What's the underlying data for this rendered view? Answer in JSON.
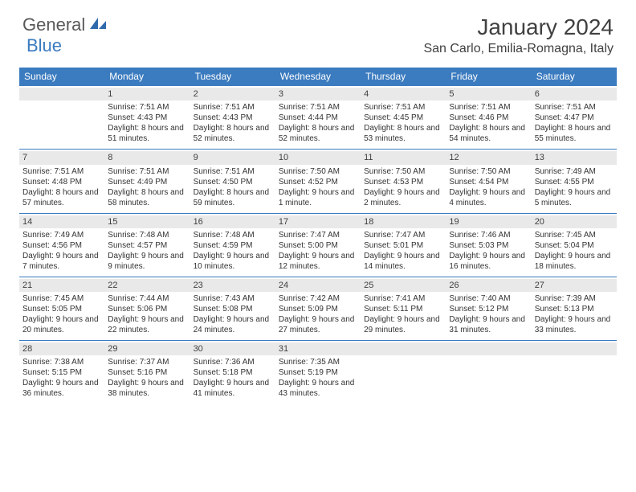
{
  "brand": {
    "part1": "General",
    "part2": "Blue"
  },
  "title": "January 2024",
  "location": "San Carlo, Emilia-Romagna, Italy",
  "day_headers": [
    "Sunday",
    "Monday",
    "Tuesday",
    "Wednesday",
    "Thursday",
    "Friday",
    "Saturday"
  ],
  "colors": {
    "header_bg": "#3b7bbf",
    "header_text": "#ffffff",
    "daynum_bg": "#e9e9e9",
    "border": "#3b7bbf",
    "text": "#333333"
  },
  "weeks": [
    [
      {
        "day": "",
        "sunrise": "",
        "sunset": "",
        "daylight": ""
      },
      {
        "day": "1",
        "sunrise": "Sunrise: 7:51 AM",
        "sunset": "Sunset: 4:43 PM",
        "daylight": "Daylight: 8 hours and 51 minutes."
      },
      {
        "day": "2",
        "sunrise": "Sunrise: 7:51 AM",
        "sunset": "Sunset: 4:43 PM",
        "daylight": "Daylight: 8 hours and 52 minutes."
      },
      {
        "day": "3",
        "sunrise": "Sunrise: 7:51 AM",
        "sunset": "Sunset: 4:44 PM",
        "daylight": "Daylight: 8 hours and 52 minutes."
      },
      {
        "day": "4",
        "sunrise": "Sunrise: 7:51 AM",
        "sunset": "Sunset: 4:45 PM",
        "daylight": "Daylight: 8 hours and 53 minutes."
      },
      {
        "day": "5",
        "sunrise": "Sunrise: 7:51 AM",
        "sunset": "Sunset: 4:46 PM",
        "daylight": "Daylight: 8 hours and 54 minutes."
      },
      {
        "day": "6",
        "sunrise": "Sunrise: 7:51 AM",
        "sunset": "Sunset: 4:47 PM",
        "daylight": "Daylight: 8 hours and 55 minutes."
      }
    ],
    [
      {
        "day": "7",
        "sunrise": "Sunrise: 7:51 AM",
        "sunset": "Sunset: 4:48 PM",
        "daylight": "Daylight: 8 hours and 57 minutes."
      },
      {
        "day": "8",
        "sunrise": "Sunrise: 7:51 AM",
        "sunset": "Sunset: 4:49 PM",
        "daylight": "Daylight: 8 hours and 58 minutes."
      },
      {
        "day": "9",
        "sunrise": "Sunrise: 7:51 AM",
        "sunset": "Sunset: 4:50 PM",
        "daylight": "Daylight: 8 hours and 59 minutes."
      },
      {
        "day": "10",
        "sunrise": "Sunrise: 7:50 AM",
        "sunset": "Sunset: 4:52 PM",
        "daylight": "Daylight: 9 hours and 1 minute."
      },
      {
        "day": "11",
        "sunrise": "Sunrise: 7:50 AM",
        "sunset": "Sunset: 4:53 PM",
        "daylight": "Daylight: 9 hours and 2 minutes."
      },
      {
        "day": "12",
        "sunrise": "Sunrise: 7:50 AM",
        "sunset": "Sunset: 4:54 PM",
        "daylight": "Daylight: 9 hours and 4 minutes."
      },
      {
        "day": "13",
        "sunrise": "Sunrise: 7:49 AM",
        "sunset": "Sunset: 4:55 PM",
        "daylight": "Daylight: 9 hours and 5 minutes."
      }
    ],
    [
      {
        "day": "14",
        "sunrise": "Sunrise: 7:49 AM",
        "sunset": "Sunset: 4:56 PM",
        "daylight": "Daylight: 9 hours and 7 minutes."
      },
      {
        "day": "15",
        "sunrise": "Sunrise: 7:48 AM",
        "sunset": "Sunset: 4:57 PM",
        "daylight": "Daylight: 9 hours and 9 minutes."
      },
      {
        "day": "16",
        "sunrise": "Sunrise: 7:48 AM",
        "sunset": "Sunset: 4:59 PM",
        "daylight": "Daylight: 9 hours and 10 minutes."
      },
      {
        "day": "17",
        "sunrise": "Sunrise: 7:47 AM",
        "sunset": "Sunset: 5:00 PM",
        "daylight": "Daylight: 9 hours and 12 minutes."
      },
      {
        "day": "18",
        "sunrise": "Sunrise: 7:47 AM",
        "sunset": "Sunset: 5:01 PM",
        "daylight": "Daylight: 9 hours and 14 minutes."
      },
      {
        "day": "19",
        "sunrise": "Sunrise: 7:46 AM",
        "sunset": "Sunset: 5:03 PM",
        "daylight": "Daylight: 9 hours and 16 minutes."
      },
      {
        "day": "20",
        "sunrise": "Sunrise: 7:45 AM",
        "sunset": "Sunset: 5:04 PM",
        "daylight": "Daylight: 9 hours and 18 minutes."
      }
    ],
    [
      {
        "day": "21",
        "sunrise": "Sunrise: 7:45 AM",
        "sunset": "Sunset: 5:05 PM",
        "daylight": "Daylight: 9 hours and 20 minutes."
      },
      {
        "day": "22",
        "sunrise": "Sunrise: 7:44 AM",
        "sunset": "Sunset: 5:06 PM",
        "daylight": "Daylight: 9 hours and 22 minutes."
      },
      {
        "day": "23",
        "sunrise": "Sunrise: 7:43 AM",
        "sunset": "Sunset: 5:08 PM",
        "daylight": "Daylight: 9 hours and 24 minutes."
      },
      {
        "day": "24",
        "sunrise": "Sunrise: 7:42 AM",
        "sunset": "Sunset: 5:09 PM",
        "daylight": "Daylight: 9 hours and 27 minutes."
      },
      {
        "day": "25",
        "sunrise": "Sunrise: 7:41 AM",
        "sunset": "Sunset: 5:11 PM",
        "daylight": "Daylight: 9 hours and 29 minutes."
      },
      {
        "day": "26",
        "sunrise": "Sunrise: 7:40 AM",
        "sunset": "Sunset: 5:12 PM",
        "daylight": "Daylight: 9 hours and 31 minutes."
      },
      {
        "day": "27",
        "sunrise": "Sunrise: 7:39 AM",
        "sunset": "Sunset: 5:13 PM",
        "daylight": "Daylight: 9 hours and 33 minutes."
      }
    ],
    [
      {
        "day": "28",
        "sunrise": "Sunrise: 7:38 AM",
        "sunset": "Sunset: 5:15 PM",
        "daylight": "Daylight: 9 hours and 36 minutes."
      },
      {
        "day": "29",
        "sunrise": "Sunrise: 7:37 AM",
        "sunset": "Sunset: 5:16 PM",
        "daylight": "Daylight: 9 hours and 38 minutes."
      },
      {
        "day": "30",
        "sunrise": "Sunrise: 7:36 AM",
        "sunset": "Sunset: 5:18 PM",
        "daylight": "Daylight: 9 hours and 41 minutes."
      },
      {
        "day": "31",
        "sunrise": "Sunrise: 7:35 AM",
        "sunset": "Sunset: 5:19 PM",
        "daylight": "Daylight: 9 hours and 43 minutes."
      },
      {
        "day": "",
        "sunrise": "",
        "sunset": "",
        "daylight": ""
      },
      {
        "day": "",
        "sunrise": "",
        "sunset": "",
        "daylight": ""
      },
      {
        "day": "",
        "sunrise": "",
        "sunset": "",
        "daylight": ""
      }
    ]
  ]
}
